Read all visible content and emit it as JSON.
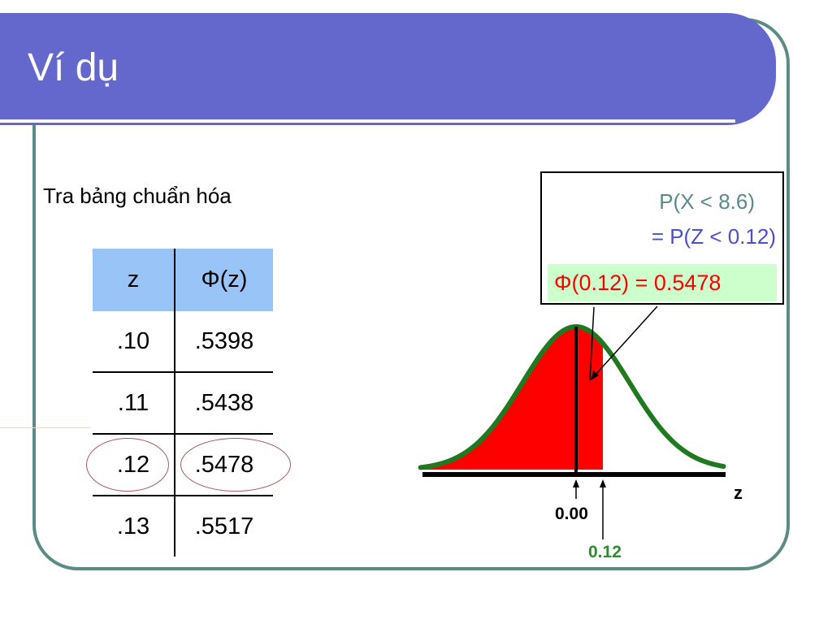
{
  "colors": {
    "title_bar": "#6468cc",
    "frame": "#5c8a84",
    "table_header_bg": "#99c4f7",
    "result_bg": "#ccffcc",
    "result_text": "#ff0000",
    "prob_text": "#5b8a8a",
    "prob_text_blue": "#4e4ec9",
    "curve_fill": "#ff0000",
    "curve_stroke": "#1f7a1f",
    "label_green": "#2e8b2e"
  },
  "slide": {
    "title": "Ví dụ"
  },
  "instruction": "Tra bảng chuẩn hóa",
  "table": {
    "headers": [
      "z",
      "Φ(z)"
    ],
    "rows": [
      {
        "z": ".10",
        "phi": ".5398"
      },
      {
        "z": ".11",
        "phi": ".5438"
      },
      {
        "z": ".12",
        "phi": ".5478",
        "highlighted": true
      },
      {
        "z": ".13",
        "phi": ".5517"
      }
    ]
  },
  "probability": {
    "line1": "P(X < 8.6)",
    "line2": "= P(Z < 0.12)",
    "result": "Φ(0.12) = 0.5478"
  },
  "chart_data": {
    "type": "area",
    "title": "",
    "xlabel": "z",
    "ylabel": "",
    "shaded_upper_z": 0.12,
    "mean": 0.0,
    "tick_labels": [
      "0.00",
      "0.12"
    ]
  }
}
